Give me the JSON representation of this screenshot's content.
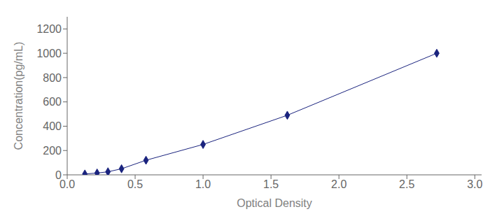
{
  "chart_data": {
    "type": "line",
    "x": [
      0.13,
      0.22,
      0.3,
      0.4,
      0.58,
      1.0,
      1.62,
      2.72
    ],
    "values": [
      7,
      15,
      25,
      50,
      120,
      250,
      490,
      1000
    ],
    "color": "#1a237e",
    "marker": "diamond",
    "line_style": "solid",
    "xlabel": "Optical Density",
    "ylabel": "Concentration(pg/mL)",
    "xlim": [
      0,
      3.05
    ],
    "ylim": [
      0,
      1300
    ],
    "xticks": [
      {
        "value": 0,
        "label": "0.0"
      },
      0.5,
      {
        "value": 1,
        "label": "1.0"
      },
      1.5,
      {
        "value": 2,
        "label": "2.0"
      },
      2.5,
      {
        "value": 3,
        "label": "3.0"
      }
    ],
    "yticks": [
      0,
      200,
      400,
      600,
      800,
      1000,
      1200
    ],
    "grid": false
  }
}
